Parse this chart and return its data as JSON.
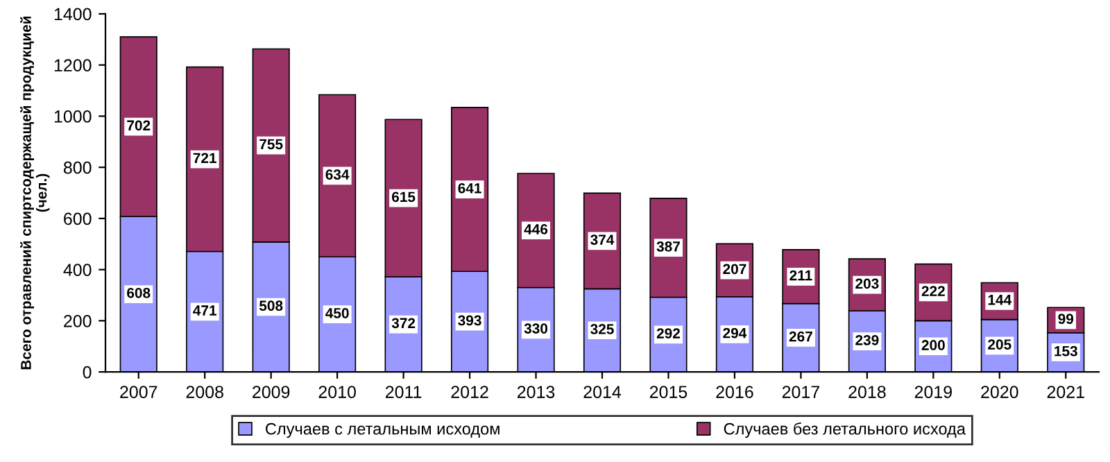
{
  "chart_data": {
    "type": "bar",
    "stacked": true,
    "ylabel": "Всего отравлений спиртсодержащей продукцией\n(чел.)",
    "categories": [
      "2007",
      "2008",
      "2009",
      "2010",
      "2011",
      "2012",
      "2013",
      "2014",
      "2015",
      "2016",
      "2017",
      "2018",
      "2019",
      "2020",
      "2021"
    ],
    "series": [
      {
        "name": "Случаев с летальным исходом",
        "color": "#9999ff",
        "values": [
          608,
          471,
          508,
          450,
          372,
          393,
          330,
          325,
          292,
          294,
          267,
          239,
          200,
          205,
          153
        ]
      },
      {
        "name": "Случаев без летального исхода",
        "color": "#993366",
        "values": [
          702,
          721,
          755,
          634,
          615,
          641,
          446,
          374,
          387,
          207,
          211,
          203,
          222,
          144,
          99
        ]
      }
    ],
    "ylim": [
      0,
      1400
    ],
    "yticks": [
      0,
      200,
      400,
      600,
      800,
      1000,
      1200,
      1400
    ],
    "grid": false,
    "legend": "bottom",
    "data_labels": true
  }
}
